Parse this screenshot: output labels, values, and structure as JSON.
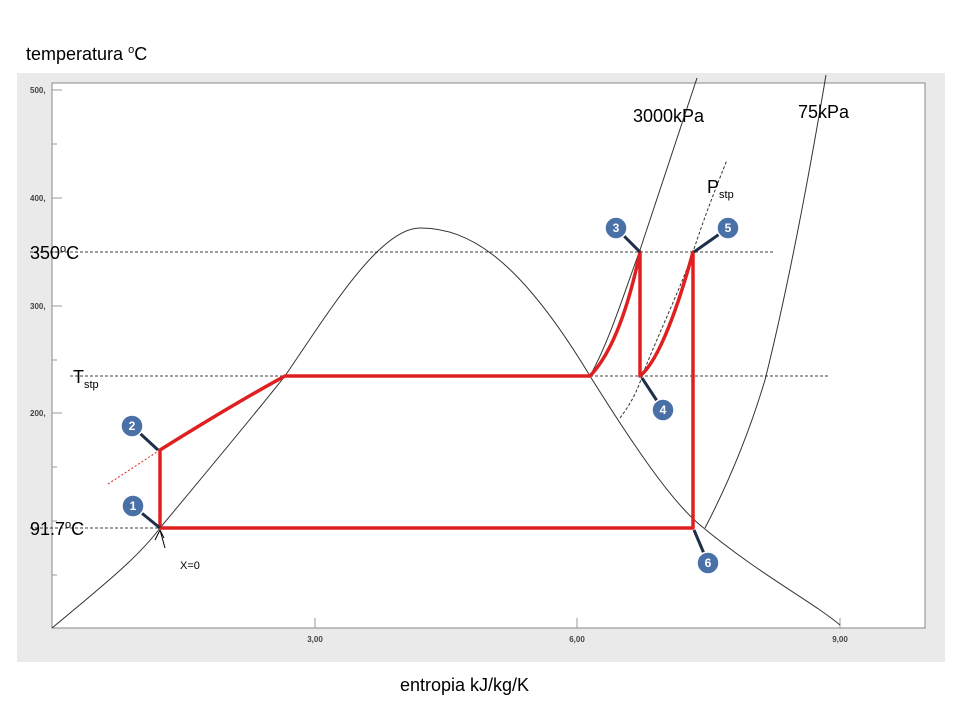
{
  "axis": {
    "y_label": {
      "text": "temperatura ",
      "sup": "o",
      "tail": "C"
    },
    "x_label": "entropia kJ/kg/K",
    "y_ticks": [
      "500,",
      "400,",
      "300,",
      "200,"
    ],
    "x_ticks": [
      "3,00",
      "6,00",
      "9,00"
    ]
  },
  "annotations": {
    "t_high": {
      "text": "350",
      "sup": "o",
      "tail": "C"
    },
    "t_low": {
      "text": "91.7",
      "sup": "o",
      "tail": "C"
    },
    "t_stp": {
      "text": "T",
      "sub": "stp"
    },
    "p_stp": {
      "text": "P",
      "sub": "stp"
    },
    "p_high": "3000kPa",
    "p_low": "75kPa",
    "quality": "X=0"
  },
  "points": [
    "1",
    "2",
    "3",
    "4",
    "5",
    "6"
  ]
}
